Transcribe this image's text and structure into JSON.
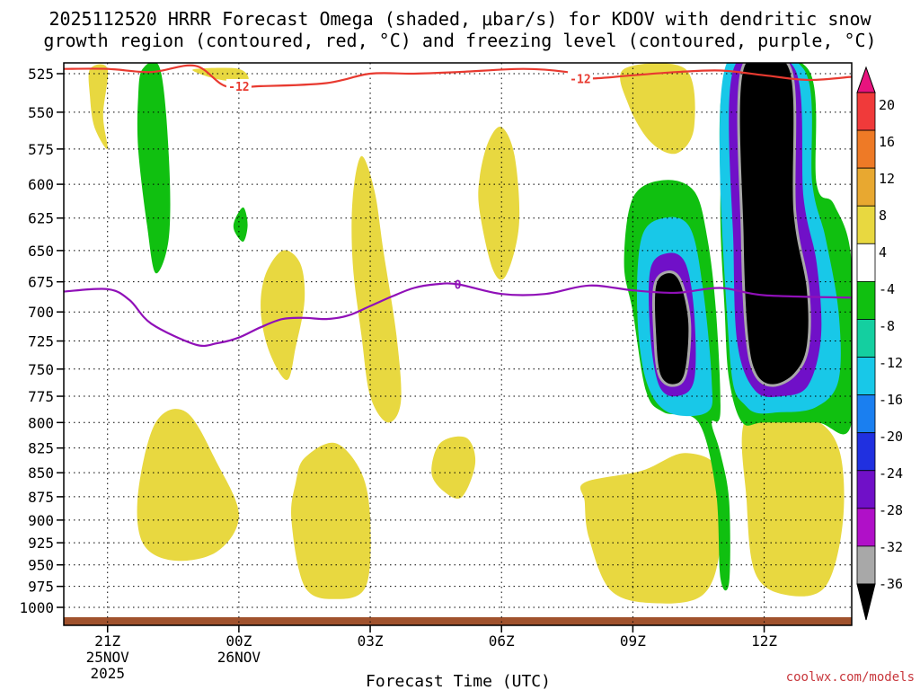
{
  "chart_data": {
    "type": "time-height contour",
    "title_lines": [
      "2025112520 HRRR Forecast Omega (shaded, μbar/s) for KDOV with dendritic snow",
      "growth region (contoured, red, °C) and freezing level (contoured, purple, °C)"
    ],
    "xlabel": "Forecast Time (UTC)",
    "credit": "coolwx.com/models",
    "y_levels_hpa": [
      525,
      550,
      575,
      600,
      625,
      650,
      675,
      700,
      725,
      750,
      775,
      800,
      825,
      850,
      875,
      900,
      925,
      950,
      975,
      1000
    ],
    "x_hours_range": [
      -4,
      14
    ],
    "x_ticks": [
      {
        "hour": -3,
        "label": "21Z",
        "date": "25NOV",
        "year": "2025"
      },
      {
        "hour": 0,
        "label": "00Z",
        "date": "26NOV",
        "year": ""
      },
      {
        "hour": 3,
        "label": "03Z",
        "date": "",
        "year": ""
      },
      {
        "hour": 6,
        "label": "06Z",
        "date": "",
        "year": ""
      },
      {
        "hour": 9,
        "label": "09Z",
        "date": "",
        "year": ""
      },
      {
        "hour": 12,
        "label": "12Z",
        "date": "",
        "year": ""
      }
    ],
    "colorbar": {
      "labels": [
        "20",
        "16",
        "12",
        "8",
        "4",
        "-4",
        "-8",
        "-12",
        "-16",
        "-20",
        "-24",
        "-28",
        "-32",
        "-36"
      ],
      "colors": [
        "#e8137e",
        "#f03a3a",
        "#ee7a26",
        "#e8a830",
        "#e8d840",
        "#ffffff",
        "#10c010",
        "#14cfa0",
        "#18c8e8",
        "#1a7ff0",
        "#2030e0",
        "#7010c8",
        "#b010c8",
        "#a8a8a8",
        "#000000"
      ]
    },
    "freezing_level": {
      "label": "0",
      "color": "#9010b8",
      "points": [
        [
          -4.0,
          683
        ],
        [
          -3.0,
          681
        ],
        [
          -2.5,
          690
        ],
        [
          -2.0,
          710
        ],
        [
          -1.0,
          728
        ],
        [
          -0.5,
          727
        ],
        [
          0.0,
          722
        ],
        [
          0.5,
          713
        ],
        [
          1.0,
          706
        ],
        [
          1.5,
          705
        ],
        [
          2.0,
          706
        ],
        [
          2.5,
          703
        ],
        [
          3.0,
          695
        ],
        [
          3.5,
          687
        ],
        [
          4.0,
          680
        ],
        [
          4.5,
          677
        ],
        [
          5.0,
          677
        ],
        [
          6.0,
          685
        ],
        [
          7.0,
          685
        ],
        [
          8.0,
          678
        ],
        [
          9.0,
          682
        ],
        [
          10.0,
          684
        ],
        [
          11.0,
          680
        ],
        [
          12.0,
          686
        ],
        [
          14.0,
          688
        ]
      ]
    },
    "dendritic_growth_region": {
      "label": "-12",
      "color": "#e83a30",
      "points": [
        [
          -4.0,
          522
        ],
        [
          -3.0,
          522
        ],
        [
          -2.0,
          524
        ],
        [
          -1.0,
          520
        ],
        [
          -0.3,
          533
        ],
        [
          0.5,
          533
        ],
        [
          2.0,
          531
        ],
        [
          3.0,
          525
        ],
        [
          4.0,
          525
        ],
        [
          5.0,
          524
        ],
        [
          6.5,
          522
        ],
        [
          7.5,
          524
        ],
        [
          8.0,
          528
        ],
        [
          9.0,
          526
        ],
        [
          10.0,
          524
        ],
        [
          11.0,
          523
        ],
        [
          12.0,
          526
        ],
        [
          13.0,
          529
        ],
        [
          14.0,
          527
        ]
      ],
      "label_positions": [
        [
          0.0,
          533
        ],
        [
          7.8,
          528
        ]
      ]
    },
    "shaded_features": [
      {
        "value": 8,
        "color": "#e8d840",
        "poly": [
          [
            -3.4,
            522
          ],
          [
            -3.0,
            522
          ],
          [
            -3.1,
            552
          ],
          [
            -3.0,
            575
          ],
          [
            -3.3,
            560
          ],
          [
            -3.4,
            540
          ]
        ]
      },
      {
        "value": -8,
        "color": "#10c010",
        "poly": [
          [
            -2.2,
            522
          ],
          [
            -1.8,
            522
          ],
          [
            -1.6,
            580
          ],
          [
            -1.6,
            640
          ],
          [
            -1.9,
            668
          ],
          [
            -2.1,
            630
          ],
          [
            -2.3,
            575
          ],
          [
            -2.3,
            540
          ]
        ]
      },
      {
        "value": 8,
        "color": "#e8d840",
        "poly": [
          [
            -1.0,
            522
          ],
          [
            0.0,
            522
          ],
          [
            0.2,
            530
          ],
          [
            -0.4,
            529
          ],
          [
            -0.9,
            525
          ]
        ]
      },
      {
        "value": -8,
        "color": "#10c010",
        "poly": [
          [
            -0.1,
            627
          ],
          [
            0.1,
            617
          ],
          [
            0.2,
            630
          ],
          [
            0.1,
            643
          ],
          [
            -0.1,
            635
          ]
        ]
      },
      {
        "value": 8,
        "color": "#e8d840",
        "poly": [
          [
            1.0,
            650
          ],
          [
            1.4,
            660
          ],
          [
            1.5,
            690
          ],
          [
            1.3,
            730
          ],
          [
            1.1,
            760
          ],
          [
            0.7,
            735
          ],
          [
            0.5,
            700
          ],
          [
            0.6,
            670
          ]
        ]
      },
      {
        "value": 8,
        "color": "#e8d840",
        "poly": [
          [
            2.8,
            580
          ],
          [
            3.1,
            605
          ],
          [
            3.3,
            650
          ],
          [
            3.6,
            720
          ],
          [
            3.7,
            780
          ],
          [
            3.4,
            800
          ],
          [
            3.0,
            775
          ],
          [
            2.8,
            720
          ],
          [
            2.6,
            660
          ],
          [
            2.6,
            610
          ]
        ]
      },
      {
        "value": 8,
        "color": "#e8d840",
        "poly": [
          [
            5.7,
            570
          ],
          [
            6.0,
            560
          ],
          [
            6.3,
            580
          ],
          [
            6.4,
            630
          ],
          [
            6.1,
            670
          ],
          [
            5.8,
            665
          ],
          [
            5.5,
            620
          ],
          [
            5.5,
            595
          ]
        ]
      },
      {
        "value": 8,
        "color": "#e8d840",
        "poly": [
          [
            8.8,
            522
          ],
          [
            10.2,
            522
          ],
          [
            10.4,
            560
          ],
          [
            10.0,
            578
          ],
          [
            9.4,
            570
          ],
          [
            8.9,
            545
          ]
        ]
      },
      {
        "value": 8,
        "color": "#e8d840",
        "poly": [
          [
            -1.9,
            800
          ],
          [
            -1.2,
            790
          ],
          [
            -0.5,
            840
          ],
          [
            -0.0,
            895
          ],
          [
            -0.5,
            935
          ],
          [
            -1.5,
            945
          ],
          [
            -2.2,
            925
          ],
          [
            -2.3,
            870
          ]
        ]
      },
      {
        "value": 8,
        "color": "#e8d840",
        "poly": [
          [
            1.5,
            835
          ],
          [
            2.2,
            820
          ],
          [
            2.8,
            850
          ],
          [
            3.0,
            900
          ],
          [
            2.9,
            975
          ],
          [
            2.2,
            990
          ],
          [
            1.5,
            975
          ],
          [
            1.2,
            900
          ],
          [
            1.3,
            860
          ]
        ]
      },
      {
        "value": 8,
        "color": "#e8d840",
        "poly": [
          [
            4.6,
            820
          ],
          [
            5.2,
            815
          ],
          [
            5.4,
            840
          ],
          [
            5.1,
            875
          ],
          [
            4.7,
            870
          ],
          [
            4.4,
            850
          ]
        ]
      },
      {
        "value": 8,
        "color": "#e8d840",
        "poly": [
          [
            7.9,
            860
          ],
          [
            9.2,
            848
          ],
          [
            10.2,
            830
          ],
          [
            11.0,
            850
          ],
          [
            11.0,
            930
          ],
          [
            10.6,
            985
          ],
          [
            9.5,
            995
          ],
          [
            8.5,
            980
          ],
          [
            8.0,
            920
          ],
          [
            7.9,
            880
          ]
        ]
      },
      {
        "value": 8,
        "color": "#e8d840",
        "poly": [
          [
            11.6,
            795
          ],
          [
            13.0,
            795
          ],
          [
            13.7,
            825
          ],
          [
            13.8,
            900
          ],
          [
            13.4,
            975
          ],
          [
            12.5,
            985
          ],
          [
            11.8,
            960
          ],
          [
            11.6,
            880
          ]
        ]
      },
      {
        "value": -8,
        "color": "#10c010",
        "poly": [
          [
            9.0,
            610
          ],
          [
            9.7,
            597
          ],
          [
            10.4,
            605
          ],
          [
            10.7,
            640
          ],
          [
            10.9,
            700
          ],
          [
            11.0,
            790
          ],
          [
            10.8,
            800
          ],
          [
            11.0,
            830
          ],
          [
            11.2,
            880
          ],
          [
            11.2,
            970
          ],
          [
            11.0,
            965
          ],
          [
            10.9,
            870
          ],
          [
            10.5,
            800
          ],
          [
            9.7,
            790
          ],
          [
            9.3,
            770
          ],
          [
            9.0,
            700
          ],
          [
            8.8,
            660
          ]
        ]
      },
      {
        "value": -8,
        "color": "#10c010",
        "poly": [
          [
            11.2,
            522
          ],
          [
            13.0,
            522
          ],
          [
            13.2,
            600
          ],
          [
            13.6,
            615
          ],
          [
            14.0,
            660
          ],
          [
            14.0,
            800
          ],
          [
            13.2,
            800
          ],
          [
            12.0,
            800
          ],
          [
            11.5,
            800
          ],
          [
            11.2,
            760
          ],
          [
            11.1,
            700
          ],
          [
            11.0,
            610
          ]
        ]
      },
      {
        "value": -12,
        "color": "#18c8e8",
        "poly": [
          [
            9.2,
            640
          ],
          [
            9.7,
            625
          ],
          [
            10.3,
            632
          ],
          [
            10.6,
            680
          ],
          [
            10.8,
            760
          ],
          [
            10.7,
            790
          ],
          [
            9.8,
            790
          ],
          [
            9.3,
            760
          ],
          [
            9.1,
            700
          ]
        ]
      },
      {
        "value": -12,
        "color": "#18c8e8",
        "poly": [
          [
            11.1,
            522
          ],
          [
            12.9,
            522
          ],
          [
            13.1,
            600
          ],
          [
            13.4,
            640
          ],
          [
            13.7,
            700
          ],
          [
            13.7,
            760
          ],
          [
            13.2,
            785
          ],
          [
            12.4,
            790
          ],
          [
            11.6,
            785
          ],
          [
            11.2,
            730
          ]
        ]
      },
      {
        "value": -28,
        "color": "#7010c8",
        "poly": [
          [
            9.4,
            665
          ],
          [
            9.8,
            652
          ],
          [
            10.2,
            660
          ],
          [
            10.4,
            700
          ],
          [
            10.4,
            760
          ],
          [
            10.0,
            775
          ],
          [
            9.6,
            765
          ],
          [
            9.4,
            720
          ]
        ]
      },
      {
        "value": -28,
        "color": "#7010c8",
        "poly": [
          [
            11.3,
            522
          ],
          [
            12.7,
            522
          ],
          [
            12.9,
            610
          ],
          [
            13.2,
            660
          ],
          [
            13.3,
            720
          ],
          [
            13.0,
            765
          ],
          [
            12.4,
            775
          ],
          [
            11.8,
            770
          ],
          [
            11.4,
            730
          ],
          [
            11.3,
            650
          ]
        ]
      },
      {
        "value": -36,
        "color": "#000000",
        "poly": [
          [
            9.5,
            678
          ],
          [
            9.8,
            667
          ],
          [
            10.1,
            675
          ],
          [
            10.3,
            710
          ],
          [
            10.2,
            755
          ],
          [
            9.9,
            765
          ],
          [
            9.6,
            755
          ],
          [
            9.5,
            720
          ]
        ]
      },
      {
        "value": -36,
        "color": "#000000",
        "poly": [
          [
            11.5,
            522
          ],
          [
            12.6,
            522
          ],
          [
            12.7,
            620
          ],
          [
            13.0,
            680
          ],
          [
            13.0,
            730
          ],
          [
            12.7,
            755
          ],
          [
            12.2,
            765
          ],
          [
            11.8,
            755
          ],
          [
            11.6,
            720
          ],
          [
            11.5,
            640
          ]
        ]
      }
    ],
    "ground": {
      "color": "#a0522d"
    }
  }
}
